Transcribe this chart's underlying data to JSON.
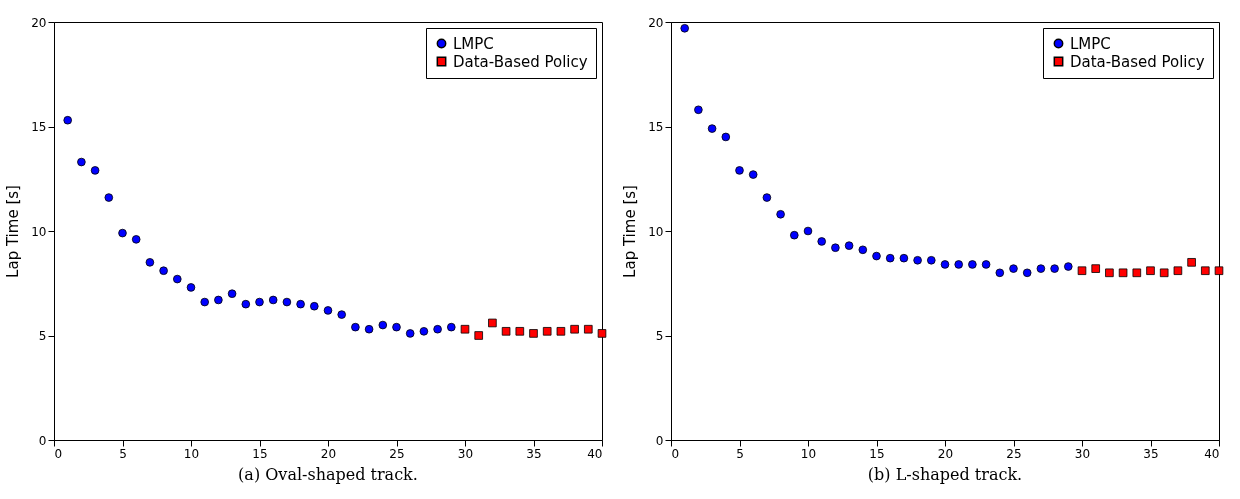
{
  "chart_data": [
    {
      "type": "scatter",
      "ylabel": "Lap Time [s]",
      "annotations": [
        "(a) Oval-shaped track."
      ],
      "xlim": [
        0,
        40
      ],
      "xticks": [
        0,
        5,
        10,
        15,
        20,
        25,
        30,
        35,
        40
      ],
      "ylim": [
        0,
        20
      ],
      "yticks": [
        0,
        5,
        10,
        15,
        20
      ],
      "grid": false,
      "legend": "top right",
      "series": [
        {
          "name": "LMPC",
          "color": "#0000ff",
          "marker": "circle",
          "x": [
            1,
            2,
            3,
            4,
            5,
            6,
            7,
            8,
            9,
            10,
            11,
            12,
            13,
            14,
            15,
            16,
            17,
            18,
            19,
            20,
            21,
            22,
            23,
            24,
            25,
            26,
            27,
            28,
            29
          ],
          "values": [
            15.3,
            13.3,
            12.9,
            11.6,
            9.9,
            9.6,
            8.5,
            8.1,
            7.7,
            7.3,
            6.6,
            6.7,
            7.0,
            6.5,
            6.6,
            6.7,
            6.6,
            6.5,
            6.4,
            6.2,
            6.0,
            5.4,
            5.3,
            5.5,
            5.4,
            5.1,
            5.2,
            5.3,
            5.4
          ]
        },
        {
          "name": "Data-Based Policy",
          "color": "#ff0000",
          "marker": "square",
          "x": [
            30,
            31,
            32,
            33,
            34,
            35,
            36,
            37,
            38,
            39,
            40
          ],
          "values": [
            5.3,
            5.0,
            5.6,
            5.2,
            5.2,
            5.1,
            5.2,
            5.2,
            5.3,
            5.3,
            5.1
          ]
        }
      ]
    },
    {
      "type": "scatter",
      "ylabel": "Lap Time [s]",
      "annotations": [
        "(b) L-shaped track."
      ],
      "xlim": [
        0,
        40
      ],
      "xticks": [
        0,
        5,
        10,
        15,
        20,
        25,
        30,
        35,
        40
      ],
      "ylim": [
        0,
        20
      ],
      "yticks": [
        0,
        5,
        10,
        15,
        20
      ],
      "grid": false,
      "legend": "top right",
      "series": [
        {
          "name": "LMPC",
          "color": "#0000ff",
          "marker": "circle",
          "x": [
            1,
            2,
            3,
            4,
            5,
            6,
            7,
            8,
            9,
            10,
            11,
            12,
            13,
            14,
            15,
            16,
            17,
            18,
            19,
            20,
            21,
            22,
            23,
            24,
            25,
            26,
            27,
            28,
            29
          ],
          "values": [
            19.7,
            15.8,
            14.9,
            14.5,
            12.9,
            12.7,
            11.6,
            10.8,
            9.8,
            10.0,
            9.5,
            9.2,
            9.3,
            9.1,
            8.8,
            8.7,
            8.7,
            8.6,
            8.6,
            8.4,
            8.4,
            8.4,
            8.4,
            8.0,
            8.2,
            8.0,
            8.2,
            8.2,
            8.3
          ]
        },
        {
          "name": "Data-Based Policy",
          "color": "#ff0000",
          "marker": "square",
          "x": [
            30,
            31,
            32,
            33,
            34,
            35,
            36,
            37,
            38,
            39,
            40
          ],
          "values": [
            8.1,
            8.2,
            8.0,
            8.0,
            8.0,
            8.1,
            8.0,
            8.1,
            8.5,
            8.1,
            8.1
          ]
        }
      ]
    }
  ]
}
